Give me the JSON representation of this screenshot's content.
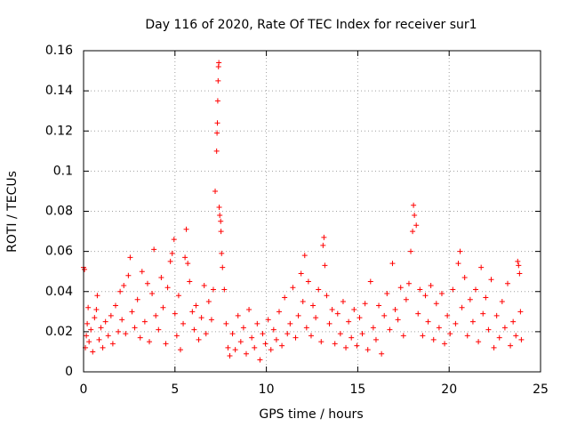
{
  "chart_data": {
    "type": "scatter",
    "title": "Day 116 of 2020, Rate Of TEC Index for receiver sur1",
    "xlabel": "GPS time / hours",
    "ylabel": "ROTI / TECUs",
    "xlim": [
      0,
      25
    ],
    "ylim": [
      0,
      0.16
    ],
    "xticks": [
      0,
      5,
      10,
      15,
      20,
      25
    ],
    "xtick_labels": [
      "0",
      "5",
      "10",
      "15",
      "20",
      "25"
    ],
    "yticks": [
      0,
      0.02,
      0.04,
      0.06,
      0.08,
      0.1,
      0.12,
      0.14,
      0.16
    ],
    "ytick_labels": [
      "0",
      "0.02",
      "0.04",
      "0.06",
      "0.08",
      "0.1",
      "0.12",
      "0.14",
      "0.16"
    ],
    "grid": true,
    "marker": "+",
    "color": "#ff0000",
    "series": [
      {
        "name": "ROTI",
        "points": [
          [
            0.0,
            0.052
          ],
          [
            0.05,
            0.051
          ],
          [
            0.1,
            0.012
          ],
          [
            0.15,
            0.018
          ],
          [
            0.2,
            0.024
          ],
          [
            0.25,
            0.032
          ],
          [
            0.3,
            0.015
          ],
          [
            0.4,
            0.021
          ],
          [
            0.5,
            0.01
          ],
          [
            0.6,
            0.027
          ],
          [
            0.7,
            0.031
          ],
          [
            0.75,
            0.038
          ],
          [
            0.85,
            0.016
          ],
          [
            0.95,
            0.022
          ],
          [
            1.05,
            0.012
          ],
          [
            1.2,
            0.025
          ],
          [
            1.35,
            0.018
          ],
          [
            1.5,
            0.028
          ],
          [
            1.6,
            0.014
          ],
          [
            1.75,
            0.033
          ],
          [
            1.9,
            0.02
          ],
          [
            2.0,
            0.04
          ],
          [
            2.1,
            0.026
          ],
          [
            2.2,
            0.043
          ],
          [
            2.3,
            0.019
          ],
          [
            2.45,
            0.048
          ],
          [
            2.55,
            0.057
          ],
          [
            2.65,
            0.03
          ],
          [
            2.8,
            0.022
          ],
          [
            2.95,
            0.036
          ],
          [
            3.1,
            0.017
          ],
          [
            3.2,
            0.05
          ],
          [
            3.35,
            0.025
          ],
          [
            3.5,
            0.044
          ],
          [
            3.6,
            0.015
          ],
          [
            3.75,
            0.039
          ],
          [
            3.85,
            0.061
          ],
          [
            3.95,
            0.028
          ],
          [
            4.1,
            0.021
          ],
          [
            4.25,
            0.047
          ],
          [
            4.35,
            0.032
          ],
          [
            4.5,
            0.014
          ],
          [
            4.6,
            0.042
          ],
          [
            4.75,
            0.055
          ],
          [
            4.85,
            0.059
          ],
          [
            4.95,
            0.066
          ],
          [
            5.0,
            0.029
          ],
          [
            5.1,
            0.018
          ],
          [
            5.2,
            0.038
          ],
          [
            5.3,
            0.011
          ],
          [
            5.45,
            0.024
          ],
          [
            5.55,
            0.057
          ],
          [
            5.62,
            0.071
          ],
          [
            5.7,
            0.054
          ],
          [
            5.8,
            0.045
          ],
          [
            5.95,
            0.03
          ],
          [
            6.05,
            0.021
          ],
          [
            6.15,
            0.033
          ],
          [
            6.3,
            0.016
          ],
          [
            6.45,
            0.027
          ],
          [
            6.6,
            0.043
          ],
          [
            6.7,
            0.019
          ],
          [
            6.85,
            0.035
          ],
          [
            7.0,
            0.026
          ],
          [
            7.1,
            0.041
          ],
          [
            7.2,
            0.09
          ],
          [
            7.28,
            0.11
          ],
          [
            7.3,
            0.119
          ],
          [
            7.32,
            0.124
          ],
          [
            7.34,
            0.135
          ],
          [
            7.36,
            0.145
          ],
          [
            7.38,
            0.152
          ],
          [
            7.4,
            0.154
          ],
          [
            7.42,
            0.082
          ],
          [
            7.45,
            0.078
          ],
          [
            7.5,
            0.075
          ],
          [
            7.52,
            0.07
          ],
          [
            7.55,
            0.059
          ],
          [
            7.6,
            0.052
          ],
          [
            7.7,
            0.041
          ],
          [
            7.8,
            0.024
          ],
          [
            7.9,
            0.012
          ],
          [
            8.0,
            0.008
          ],
          [
            8.15,
            0.019
          ],
          [
            8.3,
            0.011
          ],
          [
            8.45,
            0.028
          ],
          [
            8.6,
            0.015
          ],
          [
            8.75,
            0.022
          ],
          [
            8.9,
            0.009
          ],
          [
            9.05,
            0.031
          ],
          [
            9.2,
            0.017
          ],
          [
            9.35,
            0.012
          ],
          [
            9.5,
            0.024
          ],
          [
            9.65,
            0.006
          ],
          [
            9.8,
            0.019
          ],
          [
            9.95,
            0.014
          ],
          [
            10.1,
            0.026
          ],
          [
            10.25,
            0.011
          ],
          [
            10.4,
            0.021
          ],
          [
            10.55,
            0.016
          ],
          [
            10.7,
            0.03
          ],
          [
            10.85,
            0.013
          ],
          [
            11.0,
            0.037
          ],
          [
            11.15,
            0.019
          ],
          [
            11.3,
            0.024
          ],
          [
            11.45,
            0.042
          ],
          [
            11.6,
            0.017
          ],
          [
            11.75,
            0.028
          ],
          [
            11.9,
            0.049
          ],
          [
            12.0,
            0.035
          ],
          [
            12.1,
            0.058
          ],
          [
            12.2,
            0.022
          ],
          [
            12.3,
            0.045
          ],
          [
            12.45,
            0.018
          ],
          [
            12.55,
            0.033
          ],
          [
            12.7,
            0.027
          ],
          [
            12.85,
            0.041
          ],
          [
            13.0,
            0.015
          ],
          [
            13.1,
            0.063
          ],
          [
            13.15,
            0.067
          ],
          [
            13.2,
            0.053
          ],
          [
            13.3,
            0.038
          ],
          [
            13.45,
            0.024
          ],
          [
            13.6,
            0.031
          ],
          [
            13.75,
            0.014
          ],
          [
            13.9,
            0.029
          ],
          [
            14.05,
            0.019
          ],
          [
            14.2,
            0.035
          ],
          [
            14.35,
            0.012
          ],
          [
            14.5,
            0.025
          ],
          [
            14.65,
            0.017
          ],
          [
            14.8,
            0.031
          ],
          [
            14.95,
            0.013
          ],
          [
            15.1,
            0.027
          ],
          [
            15.25,
            0.019
          ],
          [
            15.4,
            0.034
          ],
          [
            15.55,
            0.011
          ],
          [
            15.7,
            0.045
          ],
          [
            15.85,
            0.022
          ],
          [
            16.0,
            0.016
          ],
          [
            16.15,
            0.033
          ],
          [
            16.3,
            0.009
          ],
          [
            16.45,
            0.028
          ],
          [
            16.6,
            0.039
          ],
          [
            16.75,
            0.021
          ],
          [
            16.9,
            0.054
          ],
          [
            17.05,
            0.031
          ],
          [
            17.2,
            0.026
          ],
          [
            17.35,
            0.042
          ],
          [
            17.5,
            0.018
          ],
          [
            17.65,
            0.036
          ],
          [
            17.8,
            0.044
          ],
          [
            17.9,
            0.06
          ],
          [
            18.0,
            0.07
          ],
          [
            18.05,
            0.083
          ],
          [
            18.1,
            0.078
          ],
          [
            18.2,
            0.073
          ],
          [
            18.3,
            0.029
          ],
          [
            18.4,
            0.041
          ],
          [
            18.55,
            0.018
          ],
          [
            18.7,
            0.038
          ],
          [
            18.85,
            0.025
          ],
          [
            19.0,
            0.043
          ],
          [
            19.15,
            0.016
          ],
          [
            19.3,
            0.034
          ],
          [
            19.45,
            0.022
          ],
          [
            19.6,
            0.039
          ],
          [
            19.75,
            0.014
          ],
          [
            19.9,
            0.028
          ],
          [
            20.05,
            0.019
          ],
          [
            20.2,
            0.041
          ],
          [
            20.35,
            0.024
          ],
          [
            20.5,
            0.054
          ],
          [
            20.6,
            0.06
          ],
          [
            20.7,
            0.032
          ],
          [
            20.85,
            0.047
          ],
          [
            21.0,
            0.018
          ],
          [
            21.15,
            0.036
          ],
          [
            21.3,
            0.025
          ],
          [
            21.45,
            0.041
          ],
          [
            21.6,
            0.015
          ],
          [
            21.75,
            0.052
          ],
          [
            21.85,
            0.029
          ],
          [
            22.0,
            0.037
          ],
          [
            22.15,
            0.021
          ],
          [
            22.3,
            0.046
          ],
          [
            22.45,
            0.012
          ],
          [
            22.6,
            0.028
          ],
          [
            22.75,
            0.017
          ],
          [
            22.9,
            0.035
          ],
          [
            23.05,
            0.022
          ],
          [
            23.2,
            0.044
          ],
          [
            23.35,
            0.013
          ],
          [
            23.5,
            0.025
          ],
          [
            23.65,
            0.018
          ],
          [
            23.75,
            0.055
          ],
          [
            23.8,
            0.053
          ],
          [
            23.85,
            0.049
          ],
          [
            23.9,
            0.03
          ],
          [
            23.95,
            0.016
          ]
        ]
      }
    ]
  }
}
